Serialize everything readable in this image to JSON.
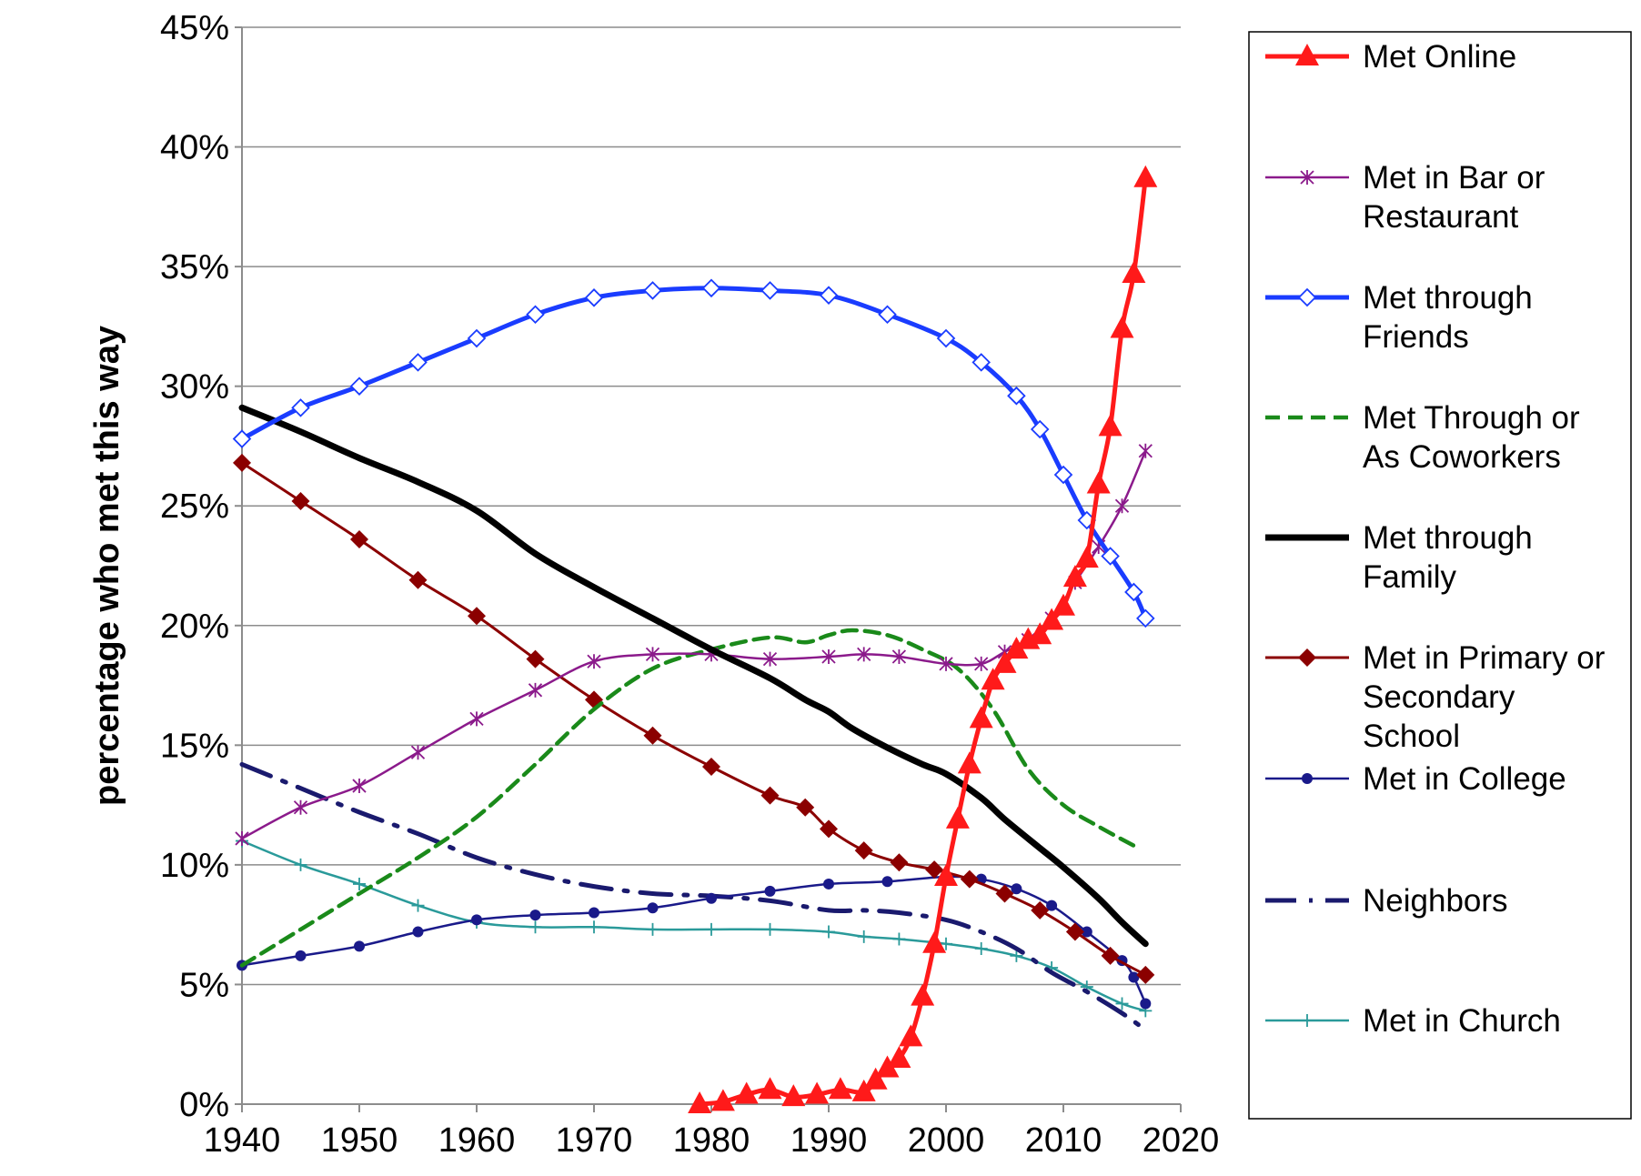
{
  "chart_data": {
    "type": "line",
    "ylabel": "percentage who met this way",
    "xlabel": "",
    "xlim": [
      1940,
      2020
    ],
    "ylim": [
      0,
      45
    ],
    "x_ticks": [
      1940,
      1950,
      1960,
      1970,
      1980,
      1990,
      2000,
      2010,
      2020
    ],
    "y_ticks": [
      0,
      5,
      10,
      15,
      20,
      25,
      30,
      35,
      40,
      45
    ],
    "y_tick_labels": [
      "0%",
      "5%",
      "10%",
      "15%",
      "20%",
      "25%",
      "30%",
      "35%",
      "40%",
      "45%"
    ],
    "grid": "horizontal",
    "legend_position": "right",
    "series": [
      {
        "key": "online",
        "name_lines": [
          "Met Online"
        ],
        "color": "#ff1a1a",
        "style": "solid",
        "marker": "triangle",
        "points": [
          [
            1979,
            0
          ],
          [
            1981,
            0.1
          ],
          [
            1983,
            0.4
          ],
          [
            1985,
            0.6
          ],
          [
            1987,
            0.3
          ],
          [
            1989,
            0.4
          ],
          [
            1991,
            0.6
          ],
          [
            1993,
            0.5
          ],
          [
            1994,
            1.0
          ],
          [
            1995,
            1.5
          ],
          [
            1996,
            1.9
          ],
          [
            1997,
            2.8
          ],
          [
            1998,
            4.5
          ],
          [
            1999,
            6.7
          ],
          [
            2000,
            9.5
          ],
          [
            2001,
            11.9
          ],
          [
            2002,
            14.2
          ],
          [
            2003,
            16.1
          ],
          [
            2004,
            17.7
          ],
          [
            2005,
            18.4
          ],
          [
            2006,
            19.0
          ],
          [
            2007,
            19.4
          ],
          [
            2008,
            19.6
          ],
          [
            2009,
            20.2
          ],
          [
            2010,
            20.8
          ],
          [
            2011,
            22.0
          ],
          [
            2012,
            22.8
          ],
          [
            2013,
            25.9
          ],
          [
            2014,
            28.3
          ],
          [
            2015,
            32.4
          ],
          [
            2016,
            34.7
          ],
          [
            2017,
            38.7
          ]
        ]
      },
      {
        "key": "bar",
        "name_lines": [
          "Met in Bar or",
          "Restaurant"
        ],
        "color": "#8b1a8b",
        "style": "solid",
        "marker": "star",
        "points": [
          [
            1940,
            11.1
          ],
          [
            1945,
            12.4
          ],
          [
            1950,
            13.3
          ],
          [
            1955,
            14.7
          ],
          [
            1960,
            16.1
          ],
          [
            1965,
            17.3
          ],
          [
            1970,
            18.5
          ],
          [
            1975,
            18.8
          ],
          [
            1980,
            18.8
          ],
          [
            1985,
            18.6
          ],
          [
            1990,
            18.7
          ],
          [
            1993,
            18.8
          ],
          [
            1996,
            18.7
          ],
          [
            2000,
            18.4
          ],
          [
            2003,
            18.4
          ],
          [
            2005,
            18.9
          ],
          [
            2007,
            19.4
          ],
          [
            2009,
            20.3
          ],
          [
            2011,
            21.8
          ],
          [
            2013,
            23.3
          ],
          [
            2015,
            25.0
          ],
          [
            2017,
            27.3
          ]
        ]
      },
      {
        "key": "friends",
        "name_lines": [
          "Met through",
          "Friends"
        ],
        "color": "#1a3cff",
        "style": "solid",
        "marker": "diamond",
        "points": [
          [
            1940,
            27.8
          ],
          [
            1945,
            29.1
          ],
          [
            1950,
            30.0
          ],
          [
            1955,
            31.0
          ],
          [
            1960,
            32.0
          ],
          [
            1965,
            33.0
          ],
          [
            1970,
            33.7
          ],
          [
            1975,
            34.0
          ],
          [
            1980,
            34.1
          ],
          [
            1985,
            34.0
          ],
          [
            1990,
            33.8
          ],
          [
            1995,
            33.0
          ],
          [
            2000,
            32.0
          ],
          [
            2003,
            31.0
          ],
          [
            2006,
            29.6
          ],
          [
            2008,
            28.2
          ],
          [
            2010,
            26.3
          ],
          [
            2012,
            24.4
          ],
          [
            2014,
            22.9
          ],
          [
            2016,
            21.4
          ],
          [
            2017,
            20.3
          ]
        ]
      },
      {
        "key": "coworkers",
        "name_lines": [
          "Met Through or",
          "As Coworkers"
        ],
        "color": "#1a8a1a",
        "style": "dash",
        "marker": "none",
        "points": [
          [
            1940,
            5.8
          ],
          [
            1945,
            7.3
          ],
          [
            1950,
            8.8
          ],
          [
            1955,
            10.3
          ],
          [
            1960,
            12.0
          ],
          [
            1965,
            14.2
          ],
          [
            1970,
            16.5
          ],
          [
            1975,
            18.2
          ],
          [
            1980,
            19.0
          ],
          [
            1985,
            19.5
          ],
          [
            1988,
            19.3
          ],
          [
            1990,
            19.6
          ],
          [
            1992,
            19.8
          ],
          [
            1995,
            19.6
          ],
          [
            1998,
            19.0
          ],
          [
            2001,
            18.2
          ],
          [
            2004,
            16.5
          ],
          [
            2007,
            14.0
          ],
          [
            2010,
            12.5
          ],
          [
            2013,
            11.6
          ],
          [
            2016,
            10.8
          ]
        ]
      },
      {
        "key": "family",
        "name_lines": [
          "Met through",
          "Family"
        ],
        "color": "#000000",
        "style": "solid",
        "marker": "none",
        "points": [
          [
            1940,
            29.1
          ],
          [
            1945,
            28.1
          ],
          [
            1950,
            27.0
          ],
          [
            1955,
            26.0
          ],
          [
            1960,
            24.8
          ],
          [
            1965,
            23.0
          ],
          [
            1970,
            21.6
          ],
          [
            1975,
            20.3
          ],
          [
            1980,
            19.0
          ],
          [
            1985,
            17.8
          ],
          [
            1988,
            16.9
          ],
          [
            1990,
            16.4
          ],
          [
            1992,
            15.7
          ],
          [
            1995,
            14.9
          ],
          [
            1998,
            14.2
          ],
          [
            2000,
            13.8
          ],
          [
            2003,
            12.8
          ],
          [
            2005,
            11.9
          ],
          [
            2008,
            10.7
          ],
          [
            2010,
            9.9
          ],
          [
            2013,
            8.6
          ],
          [
            2015,
            7.6
          ],
          [
            2017,
            6.7
          ]
        ]
      },
      {
        "key": "school",
        "name_lines": [
          "Met in Primary or",
          "Secondary",
          "School"
        ],
        "color": "#8b0000",
        "style": "solid",
        "marker": "diamond_filled",
        "points": [
          [
            1940,
            26.8
          ],
          [
            1945,
            25.2
          ],
          [
            1950,
            23.6
          ],
          [
            1955,
            21.9
          ],
          [
            1960,
            20.4
          ],
          [
            1965,
            18.6
          ],
          [
            1970,
            16.9
          ],
          [
            1975,
            15.4
          ],
          [
            1980,
            14.1
          ],
          [
            1985,
            12.9
          ],
          [
            1988,
            12.4
          ],
          [
            1990,
            11.5
          ],
          [
            1993,
            10.6
          ],
          [
            1996,
            10.1
          ],
          [
            1999,
            9.8
          ],
          [
            2002,
            9.4
          ],
          [
            2005,
            8.8
          ],
          [
            2008,
            8.1
          ],
          [
            2011,
            7.2
          ],
          [
            2014,
            6.2
          ],
          [
            2017,
            5.4
          ]
        ]
      },
      {
        "key": "college",
        "name_lines": [
          "Met in College"
        ],
        "color": "#1a1a8a",
        "style": "solid",
        "marker": "circle",
        "points": [
          [
            1940,
            5.8
          ],
          [
            1945,
            6.2
          ],
          [
            1950,
            6.6
          ],
          [
            1955,
            7.2
          ],
          [
            1960,
            7.7
          ],
          [
            1965,
            7.9
          ],
          [
            1970,
            8.0
          ],
          [
            1975,
            8.2
          ],
          [
            1980,
            8.6
          ],
          [
            1985,
            8.9
          ],
          [
            1990,
            9.2
          ],
          [
            1995,
            9.3
          ],
          [
            2000,
            9.5
          ],
          [
            2003,
            9.4
          ],
          [
            2006,
            9.0
          ],
          [
            2009,
            8.3
          ],
          [
            2012,
            7.2
          ],
          [
            2015,
            6.0
          ],
          [
            2016,
            5.3
          ],
          [
            2017,
            4.2
          ]
        ]
      },
      {
        "key": "neighbors",
        "name_lines": [
          "Neighbors"
        ],
        "color": "#1a1a6e",
        "style": "dashdot",
        "marker": "none",
        "points": [
          [
            1940,
            14.2
          ],
          [
            1945,
            13.2
          ],
          [
            1950,
            12.2
          ],
          [
            1955,
            11.3
          ],
          [
            1960,
            10.3
          ],
          [
            1965,
            9.6
          ],
          [
            1970,
            9.1
          ],
          [
            1975,
            8.8
          ],
          [
            1980,
            8.7
          ],
          [
            1985,
            8.5
          ],
          [
            1990,
            8.1
          ],
          [
            1993,
            8.1
          ],
          [
            1996,
            8.0
          ],
          [
            2000,
            7.7
          ],
          [
            2003,
            7.2
          ],
          [
            2006,
            6.5
          ],
          [
            2009,
            5.5
          ],
          [
            2012,
            4.7
          ],
          [
            2015,
            3.8
          ],
          [
            2017,
            3.1
          ]
        ]
      },
      {
        "key": "church",
        "name_lines": [
          "Met in Church"
        ],
        "color": "#2a9a9a",
        "style": "solid",
        "marker": "plus",
        "points": [
          [
            1940,
            11.0
          ],
          [
            1945,
            10.0
          ],
          [
            1950,
            9.2
          ],
          [
            1955,
            8.3
          ],
          [
            1960,
            7.6
          ],
          [
            1965,
            7.4
          ],
          [
            1970,
            7.4
          ],
          [
            1975,
            7.3
          ],
          [
            1980,
            7.3
          ],
          [
            1985,
            7.3
          ],
          [
            1990,
            7.2
          ],
          [
            1993,
            7.0
          ],
          [
            1996,
            6.9
          ],
          [
            2000,
            6.7
          ],
          [
            2003,
            6.5
          ],
          [
            2006,
            6.2
          ],
          [
            2009,
            5.7
          ],
          [
            2012,
            4.9
          ],
          [
            2015,
            4.2
          ],
          [
            2017,
            3.9
          ]
        ]
      }
    ]
  }
}
